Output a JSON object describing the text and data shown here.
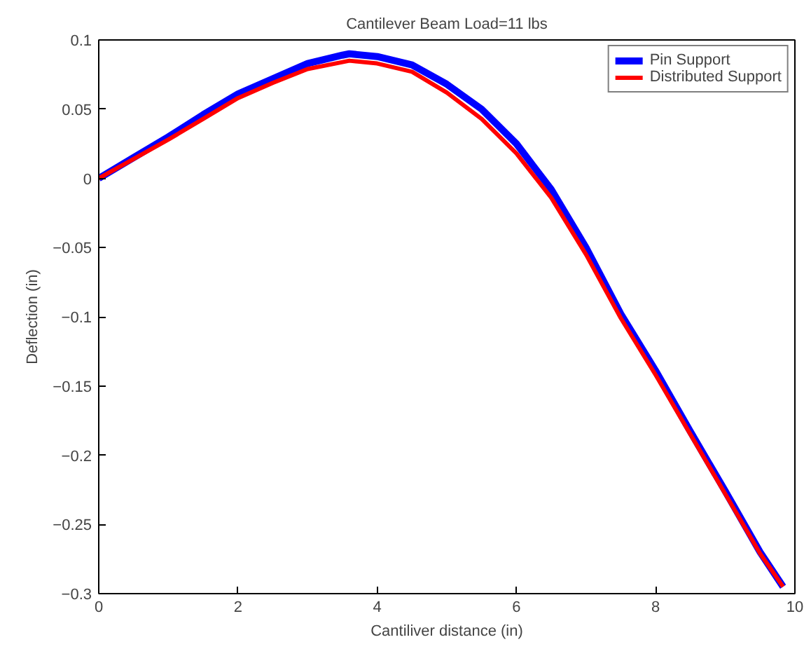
{
  "chart_data": {
    "type": "line",
    "title": "Cantilever Beam Load=11 lbs",
    "xlabel": "Cantiliver distance (in)",
    "ylabel": "Deflection (in)",
    "x": [
      0,
      0.5,
      1,
      1.5,
      2,
      2.5,
      3,
      3.5,
      3.6,
      4,
      4.5,
      5,
      5.5,
      6,
      6.5,
      7,
      7.5,
      8,
      8.5,
      9,
      9.5,
      9.83
    ],
    "series": [
      {
        "name": "Pin Support",
        "color": "#0000ff",
        "values": [
          0,
          0.015,
          0.03,
          0.046,
          0.061,
          0.072,
          0.083,
          0.089,
          0.09,
          0.088,
          0.082,
          0.068,
          0.05,
          0.025,
          -0.008,
          -0.05,
          -0.098,
          -0.139,
          -0.183,
          -0.226,
          -0.27,
          -0.295
        ]
      },
      {
        "name": "Distributed Support",
        "color": "#ff0000",
        "values": [
          0,
          0.014,
          0.028,
          0.043,
          0.058,
          0.069,
          0.079,
          0.084,
          0.085,
          0.083,
          0.077,
          0.062,
          0.043,
          0.018,
          -0.014,
          -0.055,
          -0.101,
          -0.142,
          -0.185,
          -0.228,
          -0.271,
          -0.295
        ]
      }
    ],
    "xlim": [
      0,
      10
    ],
    "ylim": [
      -0.3,
      0.1
    ],
    "xticks": [
      0,
      2,
      4,
      6,
      8,
      10
    ],
    "yticks": [
      {
        "value": -0.3,
        "label": "−0.3"
      },
      {
        "value": -0.25,
        "label": "−0.25"
      },
      {
        "value": -0.2,
        "label": "−0.2"
      },
      {
        "value": -0.15,
        "label": "−0.15"
      },
      {
        "value": -0.1,
        "label": "−0.1"
      },
      {
        "value": -0.05,
        "label": "−0.05"
      },
      0,
      0.05,
      0.1
    ],
    "legend": "top right",
    "grid": false
  }
}
